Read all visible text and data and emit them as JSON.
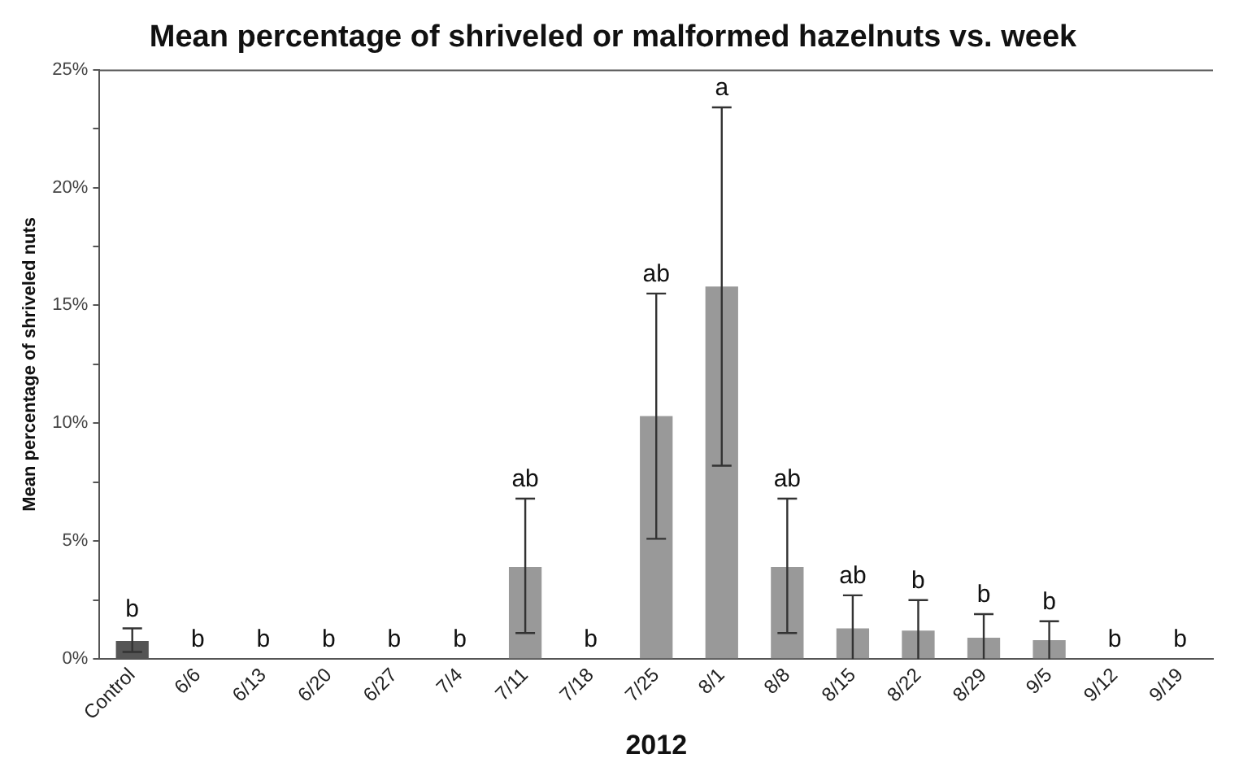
{
  "chart_data": {
    "type": "bar",
    "title": "Mean percentage of shriveled or malformed hazelnuts vs. week",
    "xlabel": "2012",
    "ylabel": "Mean percentage of shriveled nuts",
    "categories": [
      "Control",
      "6/6",
      "6/13",
      "6/20",
      "6/27",
      "7/4",
      "7/11",
      "7/18",
      "7/25",
      "8/1",
      "8/8",
      "8/15",
      "8/22",
      "8/29",
      "9/5",
      "9/12",
      "9/19"
    ],
    "values": [
      0.76,
      0,
      0,
      0,
      0,
      0,
      3.9,
      0,
      10.3,
      15.8,
      3.9,
      1.3,
      1.2,
      0.9,
      0.8,
      0,
      0
    ],
    "colors": [
      "#555555",
      "#999999",
      "#999999",
      "#999999",
      "#999999",
      "#999999",
      "#999999",
      "#999999",
      "#999999",
      "#999999",
      "#999999",
      "#999999",
      "#999999",
      "#999999",
      "#999999",
      "#999999",
      "#999999"
    ],
    "errors": [
      [
        0.3,
        1.3
      ],
      null,
      null,
      null,
      null,
      null,
      [
        1.1,
        6.8
      ],
      null,
      [
        5.1,
        15.5
      ],
      [
        8.2,
        23.4
      ],
      [
        1.1,
        6.8
      ],
      [
        0,
        2.7
      ],
      [
        0,
        2.5
      ],
      [
        0,
        1.9
      ],
      [
        0,
        1.6
      ],
      null,
      null
    ],
    "annotations": [
      {
        "text": "b",
        "x": "Control",
        "y": 1.3
      },
      {
        "text": "b",
        "x": "6/6",
        "y": 0
      },
      {
        "text": "b",
        "x": "6/13",
        "y": 0
      },
      {
        "text": "b",
        "x": "6/20",
        "y": 0
      },
      {
        "text": "b",
        "x": "6/27",
        "y": 0
      },
      {
        "text": "b",
        "x": "7/4",
        "y": 0
      },
      {
        "text": "ab",
        "x": "7/11",
        "y": 6.8
      },
      {
        "text": "b",
        "x": "7/18",
        "y": 0
      },
      {
        "text": "ab",
        "x": "7/25",
        "y": 15.5
      },
      {
        "text": "a",
        "x": "8/1",
        "y": 23.4
      },
      {
        "text": "ab",
        "x": "8/8",
        "y": 6.8
      },
      {
        "text": "ab",
        "x": "8/15",
        "y": 2.7
      },
      {
        "text": "b",
        "x": "8/22",
        "y": 2.5
      },
      {
        "text": "b",
        "x": "8/29",
        "y": 1.9
      },
      {
        "text": "b",
        "x": "9/5",
        "y": 1.6
      },
      {
        "text": "b",
        "x": "9/12",
        "y": 0
      },
      {
        "text": "b",
        "x": "9/19",
        "y": 0
      }
    ],
    "ylim": [
      0,
      25
    ],
    "yticks": [
      {
        "value": 0,
        "label": "0%"
      },
      {
        "value": 2.5,
        "label": null
      },
      {
        "value": 5,
        "label": "5%"
      },
      {
        "value": 7.5,
        "label": null
      },
      {
        "value": 10,
        "label": "10%"
      },
      {
        "value": 12.5,
        "label": null
      },
      {
        "value": 15,
        "label": "15%"
      },
      {
        "value": 17.5,
        "label": null
      },
      {
        "value": 20,
        "label": "20%"
      },
      {
        "value": 22.5,
        "label": null
      },
      {
        "value": 25,
        "label": "25%"
      }
    ],
    "grid": false,
    "legend": false
  }
}
